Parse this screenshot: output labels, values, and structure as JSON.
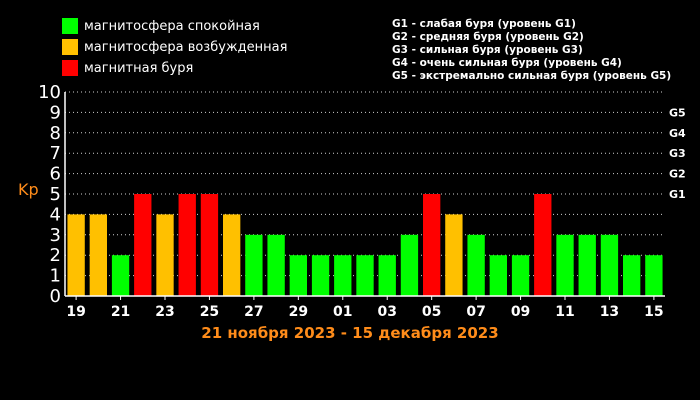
{
  "legend": {
    "items": [
      {
        "label": "магнитосфера спокойная",
        "color": "#00ff00"
      },
      {
        "label": "магнитосфера возбужденная",
        "color": "#ffc000"
      },
      {
        "label": "магнитная буря",
        "color": "#ff0000"
      }
    ]
  },
  "g_scale": {
    "lines": [
      "G1 - слабая буря (уровень G1)",
      "G2 - средняя буря (уровень G2)",
      "G3 - сильная буря (уровень G3)",
      "G4 - очень сильная буря (уровень G4)",
      "G5 - экстремально сильная буря (уровень G5)"
    ]
  },
  "chart_data": {
    "type": "bar",
    "title": "21 ноября 2023 - 15 декабря 2023",
    "ylabel": "Kp",
    "ylim": [
      0,
      10
    ],
    "yticks": [
      0,
      1,
      2,
      3,
      4,
      5,
      6,
      7,
      8,
      9,
      10
    ],
    "x_tick_labels": [
      "19",
      "21",
      "23",
      "25",
      "27",
      "29",
      "01",
      "03",
      "05",
      "07",
      "09",
      "11",
      "13",
      "15"
    ],
    "values": [
      4,
      4,
      2,
      5,
      4,
      5,
      5,
      4,
      3,
      3,
      2,
      2,
      2,
      2,
      2,
      3,
      5,
      4,
      3,
      2,
      2,
      5,
      3,
      3,
      3,
      2,
      2
    ],
    "right_levels": [
      {
        "label": "G1",
        "kp": 5
      },
      {
        "label": "G2",
        "kp": 6
      },
      {
        "label": "G3",
        "kp": 7
      },
      {
        "label": "G4",
        "kp": 8
      },
      {
        "label": "G5",
        "kp": 9
      }
    ],
    "colors": {
      "quiet": "#00ff00",
      "active": "#ffc000",
      "storm": "#ff0000"
    },
    "grid": true
  }
}
